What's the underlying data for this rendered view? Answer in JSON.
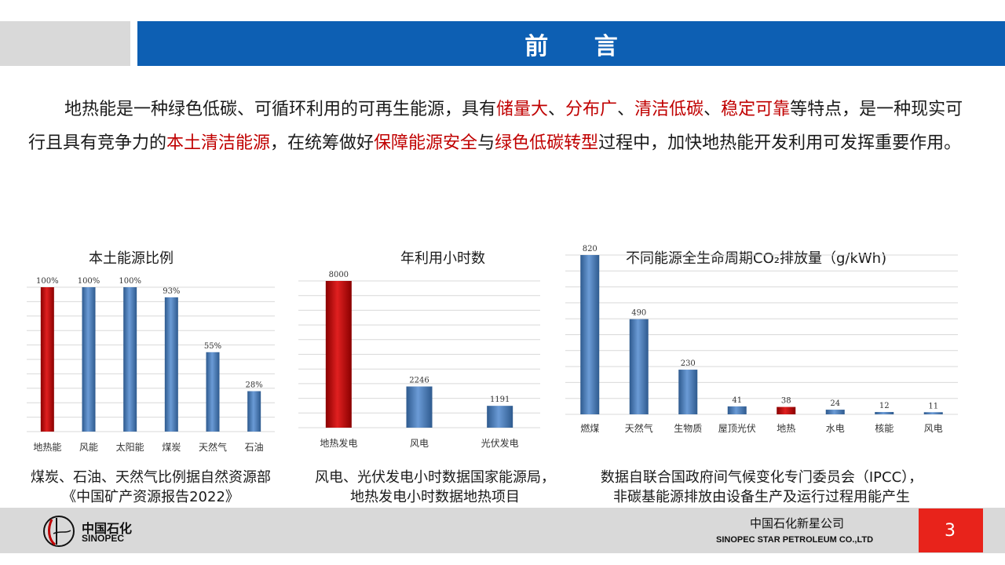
{
  "header": {
    "title": "前 言"
  },
  "intro": {
    "segments": [
      {
        "text": "地热能是一种绿色低碳、可循环利用的可再生能源，具有",
        "red": false
      },
      {
        "text": "储量大",
        "red": true
      },
      {
        "text": "、",
        "red": false
      },
      {
        "text": "分布广",
        "red": true
      },
      {
        "text": "、",
        "red": false
      },
      {
        "text": "清洁低碳",
        "red": true
      },
      {
        "text": "、",
        "red": false
      },
      {
        "text": "稳定可靠",
        "red": true
      },
      {
        "text": "等特点，是一种现实可行且具有竞争力的",
        "red": false
      },
      {
        "text": "本土清洁能源",
        "red": true
      },
      {
        "text": "，在统筹做好",
        "red": false
      },
      {
        "text": "保障能源安全",
        "red": true
      },
      {
        "text": "与",
        "red": false
      },
      {
        "text": "绿色低碳转型",
        "red": true
      },
      {
        "text": "过程中，加快地热能开发利用可发挥重要作用。",
        "red": false
      }
    ]
  },
  "chart_data": [
    {
      "type": "bar",
      "title": "本土能源比例",
      "categories": [
        "地热能",
        "风能",
        "太阳能",
        "煤炭",
        "天然气",
        "石油"
      ],
      "values": [
        100,
        100,
        100,
        93,
        55,
        28
      ],
      "labels": [
        "100%",
        "100%",
        "100%",
        "93%",
        "55%",
        "28%"
      ],
      "highlight": [
        0
      ],
      "ylim": [
        0,
        100
      ],
      "grid": true
    },
    {
      "type": "bar",
      "title": "年利用小时数",
      "categories": [
        "地热发电",
        "风电",
        "光伏发电"
      ],
      "values": [
        8000,
        2246,
        1191
      ],
      "labels": [
        "8000",
        "2246",
        "1191"
      ],
      "highlight": [
        0
      ],
      "ylim": [
        0,
        8000
      ],
      "grid": true
    },
    {
      "type": "bar",
      "title": "不同能源全生命周期CO₂排放量（g/kWh)",
      "categories": [
        "燃煤",
        "天然气",
        "生物质",
        "屋顶光伏",
        "地热",
        "水电",
        "核能",
        "风电"
      ],
      "values": [
        820,
        490,
        230,
        41,
        38,
        24,
        12,
        11
      ],
      "labels": [
        "820",
        "490",
        "230",
        "41",
        "38",
        "24",
        "12",
        "11"
      ],
      "highlight": [
        4
      ],
      "ylim": [
        0,
        820
      ],
      "grid": true
    }
  ],
  "captions": {
    "c1": [
      "煤炭、石油、天然气比例据自然资源部",
      "《中国矿产资源报告2022》"
    ],
    "c2": [
      "风电、光伏发电小时数据国家能源局，",
      "地热发电小时数据地热项目"
    ],
    "c3": [
      "数据自联合国政府间气候变化专门委员会（IPCC），",
      "非碳基能源排放由设备生产及运行过程用能产生"
    ]
  },
  "footer": {
    "logo_cn": "中国石化",
    "logo_en": "SINOPEC",
    "company_cn": "中国石化新星公司",
    "company_en": "SINOPEC STAR PETROLEUM CO.,LTD",
    "page": "3"
  },
  "colors": {
    "blue_bar": "#4f81bd",
    "red_bar": "#c00000",
    "header_blue": "#0d5fb3",
    "accent_red": "#e8231b"
  }
}
